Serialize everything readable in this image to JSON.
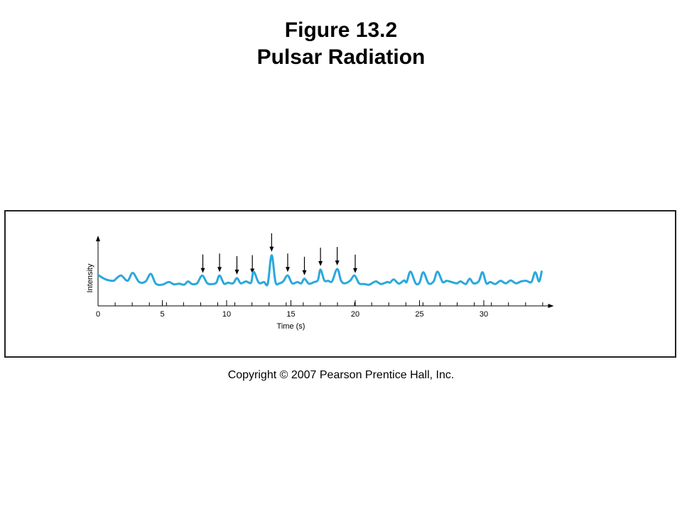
{
  "slide": {
    "title_line1": "Figure 13.2",
    "title_line2": "Pulsar Radiation",
    "copyright": "Copyright © 2007 Pearson Prentice Hall, Inc."
  },
  "chart_data": {
    "type": "line",
    "xlabel": "Time (s)",
    "ylabel": "Intensity",
    "xlim": [
      0,
      35
    ],
    "ylim": [
      0,
      1
    ],
    "x_ticks": [
      0,
      5,
      10,
      15,
      20,
      25,
      30
    ],
    "minor_tick_step": 1.33,
    "color": "#2aa8dc",
    "pulse_arrows_at": [
      8.15,
      9.45,
      10.8,
      12.0,
      13.5,
      14.75,
      16.05,
      17.3,
      18.6,
      20.0
    ],
    "series": [
      {
        "x": [
          0,
          0.6,
          1.2,
          1.4,
          1.8,
          2.3,
          2.7,
          3.2,
          3.7,
          4.1,
          4.5,
          5.0,
          5.5,
          5.9,
          6.3,
          6.7,
          7.0,
          7.3,
          7.7,
          8.1,
          8.5,
          8.9,
          9.2,
          9.45,
          9.8,
          10.1,
          10.5,
          10.8,
          11.1,
          11.5,
          11.9,
          12.1,
          12.5,
          12.9,
          13.2,
          13.5,
          13.8,
          14.1,
          14.4,
          14.75,
          15.1,
          15.5,
          15.8,
          16.05,
          16.4,
          16.8,
          17.1,
          17.3,
          17.6,
          17.9,
          18.2,
          18.6,
          18.9,
          19.2,
          19.6,
          19.95,
          20.3,
          20.7,
          21.1,
          21.6,
          22.0,
          22.5,
          22.7,
          23.0,
          23.4,
          23.8,
          24.0,
          24.3,
          24.7,
          25.0,
          25.3,
          25.7,
          26.1,
          26.4,
          26.8,
          27.1,
          27.5,
          27.9,
          28.2,
          28.6,
          28.9,
          29.2,
          29.6,
          29.9,
          30.2,
          30.5,
          30.9,
          31.3,
          31.7,
          32.1,
          32.5,
          32.9,
          33.3,
          33.7,
          34.0,
          34.3,
          34.5
        ],
        "y": [
          0.32,
          0.18,
          0.14,
          0.2,
          0.3,
          0.14,
          0.38,
          0.1,
          0.12,
          0.35,
          0.05,
          0.02,
          0.1,
          0.03,
          0.05,
          0.02,
          0.12,
          0.04,
          0.06,
          0.3,
          0.06,
          0.04,
          0.08,
          0.3,
          0.05,
          0.08,
          0.06,
          0.22,
          0.06,
          0.12,
          0.08,
          0.42,
          0.08,
          0.1,
          0.05,
          0.92,
          0.1,
          0.06,
          0.12,
          0.3,
          0.06,
          0.1,
          0.06,
          0.2,
          0.05,
          0.1,
          0.16,
          0.48,
          0.15,
          0.14,
          0.12,
          0.5,
          0.14,
          0.06,
          0.14,
          0.3,
          0.06,
          0.04,
          0.02,
          0.12,
          0.04,
          0.1,
          0.08,
          0.18,
          0.05,
          0.15,
          0.1,
          0.42,
          0.06,
          0.08,
          0.4,
          0.06,
          0.12,
          0.42,
          0.1,
          0.14,
          0.1,
          0.06,
          0.12,
          0.04,
          0.2,
          0.06,
          0.12,
          0.4,
          0.06,
          0.1,
          0.04,
          0.14,
          0.06,
          0.15,
          0.06,
          0.12,
          0.14,
          0.1,
          0.4,
          0.12,
          0.42
        ]
      }
    ]
  }
}
